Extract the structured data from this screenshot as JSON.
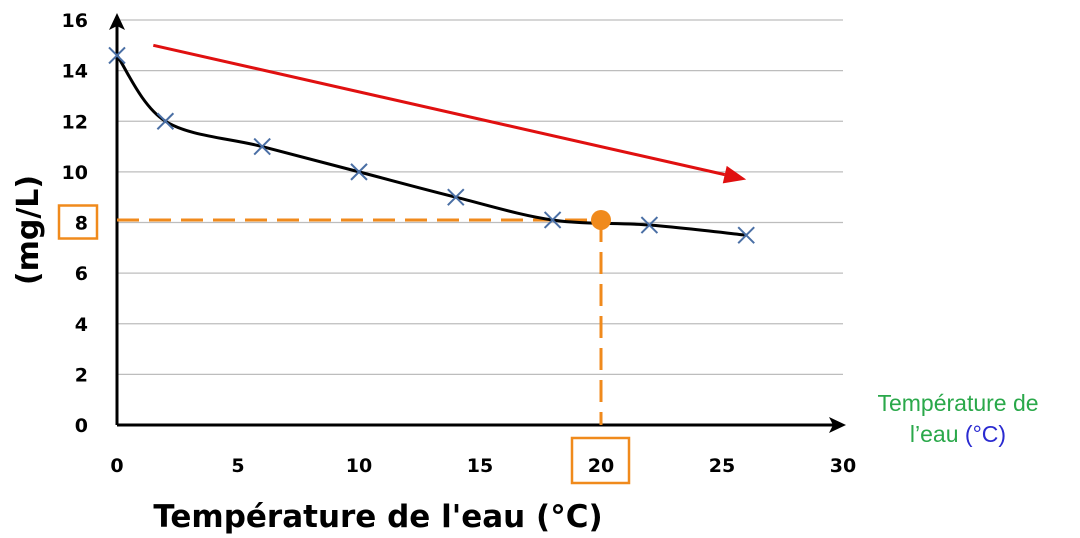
{
  "chart_data": {
    "type": "line",
    "xlabel": "Température de l'eau (°C)",
    "ylabel": "(mg/L)",
    "xlim": [
      0,
      30
    ],
    "ylim": [
      0,
      16
    ],
    "x_ticks": [
      "0",
      "5",
      "10",
      "15",
      "20",
      "25",
      "30"
    ],
    "y_ticks": [
      "0",
      "2",
      "4",
      "6",
      "8",
      "10",
      "12",
      "14",
      "16"
    ],
    "grid": "horizontal",
    "series": [
      {
        "marker": "x",
        "color": "#4a6fa5",
        "x": [
          0,
          2,
          6,
          10,
          14,
          18,
          22,
          26
        ],
        "y": [
          14.6,
          12.0,
          11.0,
          10.0,
          9.0,
          8.1,
          7.9,
          7.5
        ]
      }
    ],
    "annotations": {
      "highlight_point": {
        "x": 20,
        "y": 8.1,
        "color": "#f08a1c"
      },
      "boxed_x_tick": "20",
      "boxed_y_tick": "8",
      "trend_arrow": {
        "color": "#e01010",
        "from": [
          1.5,
          15.0
        ],
        "to": [
          26,
          9.7
        ]
      }
    },
    "side_label": {
      "text": "Température de",
      "text2": "l’eau",
      "unit": "(°C)"
    }
  }
}
